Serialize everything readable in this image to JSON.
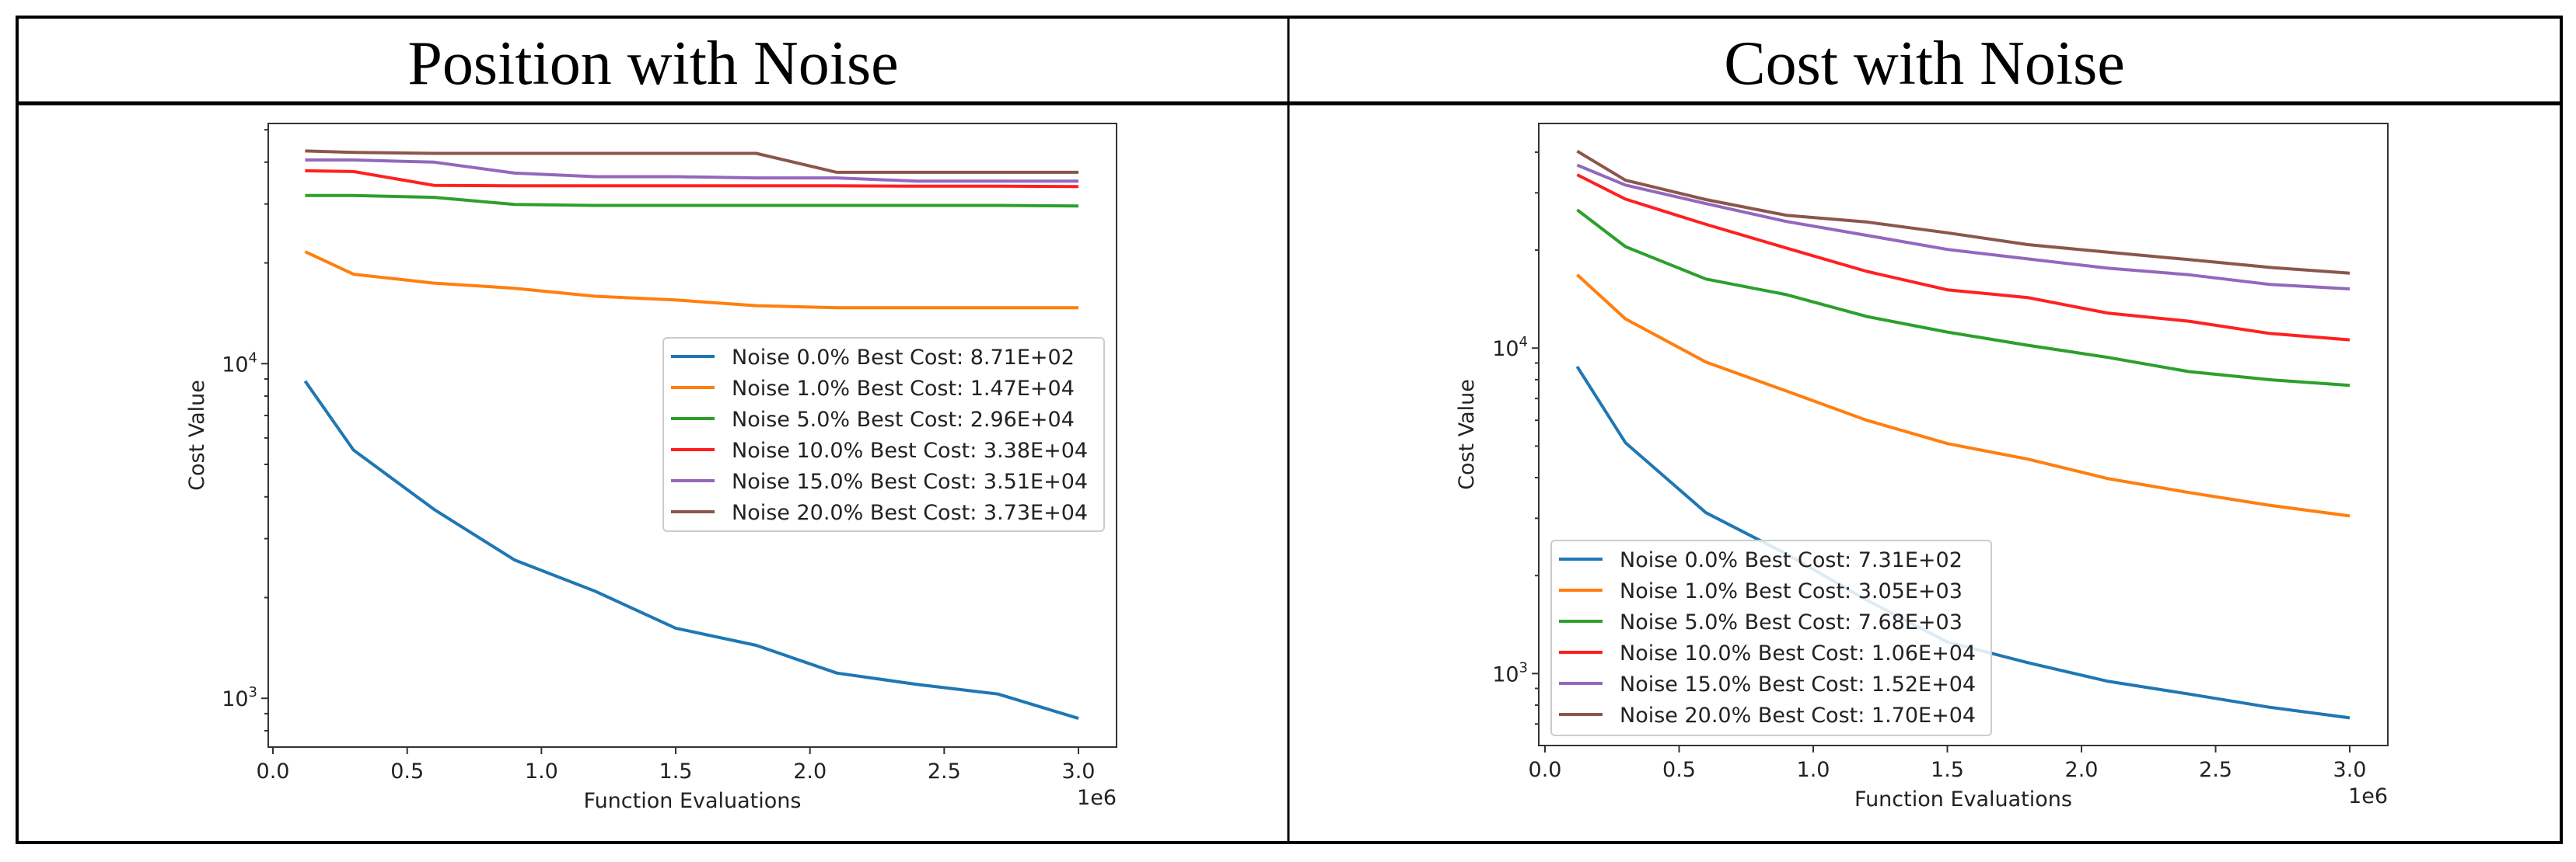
{
  "panels": [
    {
      "title": "Position with Noise"
    },
    {
      "title": "Cost with Noise"
    }
  ],
  "chart_data": [
    {
      "type": "line",
      "panel_title": "Position with Noise",
      "xlabel": "Function Evaluations",
      "ylabel": "Cost Value",
      "x_offset_label": "1e6",
      "yscale": "log",
      "xlim": [
        0.0,
        3.15
      ],
      "ylim": [
        715,
        52200
      ],
      "xticks": [
        "0.0",
        "0.5",
        "1.0",
        "1.5",
        "2.0",
        "2.5",
        "3.0"
      ],
      "yticks": [
        {
          "base": "10",
          "exp": "3",
          "value": 1000
        },
        {
          "base": "10",
          "exp": "4",
          "value": 10000
        }
      ],
      "legend_position": "center-right",
      "x": [
        0.12,
        0.3,
        0.6,
        0.9,
        1.2,
        1.5,
        1.8,
        2.1,
        2.4,
        2.7,
        3.0
      ],
      "series": [
        {
          "name": "Noise  0.0% Best Cost: 8.71E+02",
          "color": "#1f77b4",
          "values": [
            8870,
            5520,
            3670,
            2590,
            2090,
            1620,
            1440,
            1190,
            1100,
            1030,
            871
          ]
        },
        {
          "name": "Noise  1.0% Best Cost: 1.47E+04",
          "color": "#ff7f0e",
          "values": [
            21600,
            18500,
            17400,
            16800,
            15900,
            15500,
            14900,
            14700,
            14700,
            14700,
            14700
          ]
        },
        {
          "name": "Noise  5.0% Best Cost: 2.96E+04",
          "color": "#2ca02c",
          "values": [
            31800,
            31800,
            31400,
            29900,
            29700,
            29700,
            29700,
            29700,
            29700,
            29700,
            29600
          ]
        },
        {
          "name": "Noise  10.0% Best Cost: 3.38E+04",
          "color": "#ff2020",
          "values": [
            37700,
            37500,
            34100,
            34000,
            34000,
            34000,
            34000,
            34000,
            33900,
            33900,
            33800
          ]
        },
        {
          "name": "Noise  15.0% Best Cost: 3.51E+04",
          "color": "#9467bd",
          "values": [
            40600,
            40600,
            40000,
            37100,
            36200,
            36200,
            35900,
            35900,
            35100,
            35100,
            35100
          ]
        },
        {
          "name": "Noise  20.0% Best Cost: 3.73E+04",
          "color": "#8c564b",
          "values": [
            43200,
            42800,
            42500,
            42500,
            42500,
            42500,
            42500,
            37300,
            37300,
            37300,
            37300
          ]
        }
      ]
    },
    {
      "type": "line",
      "panel_title": "Cost with Noise",
      "xlabel": "Function Evaluations",
      "ylabel": "Cost Value",
      "x_offset_label": "1e6",
      "yscale": "log",
      "xlim": [
        0.0,
        3.15
      ],
      "ylim": [
        601,
        49000
      ],
      "xticks": [
        "0.0",
        "0.5",
        "1.0",
        "1.5",
        "2.0",
        "2.5",
        "3.0"
      ],
      "yticks": [
        {
          "base": "10",
          "exp": "3",
          "value": 1000
        },
        {
          "base": "10",
          "exp": "4",
          "value": 10000
        }
      ],
      "legend_position": "lower-left",
      "x": [
        0.12,
        0.3,
        0.6,
        0.9,
        1.2,
        1.5,
        1.8,
        2.1,
        2.4,
        2.7,
        3.0
      ],
      "series": [
        {
          "name": "Noise  0.0% Best Cost: 7.31E+02",
          "color": "#1f77b4",
          "values": [
            8770,
            5120,
            3120,
            2330,
            1680,
            1250,
            1080,
            946,
            865,
            788,
            731
          ]
        },
        {
          "name": "Noise  1.0% Best Cost: 3.05E+03",
          "color": "#ff7f0e",
          "values": [
            16800,
            12300,
            9060,
            7380,
            6000,
            5090,
            4560,
            3970,
            3600,
            3290,
            3050
          ]
        },
        {
          "name": "Noise  5.0% Best Cost: 7.68E+03",
          "color": "#2ca02c",
          "values": [
            26600,
            20500,
            16300,
            14600,
            12500,
            11200,
            10200,
            9360,
            8470,
            8000,
            7680
          ]
        },
        {
          "name": "Noise  10.0% Best Cost: 1.06E+04",
          "color": "#ff2020",
          "values": [
            34100,
            28700,
            24000,
            20300,
            17200,
            15100,
            14300,
            12800,
            12100,
            11100,
            10600
          ]
        },
        {
          "name": "Noise  15.0% Best Cost: 1.52E+04",
          "color": "#9467bd",
          "values": [
            36500,
            31700,
            27800,
            24500,
            22200,
            20100,
            18800,
            17600,
            16800,
            15700,
            15200
          ]
        },
        {
          "name": "Noise  20.0% Best Cost: 1.70E+04",
          "color": "#8c564b",
          "values": [
            40300,
            32800,
            28600,
            25600,
            24400,
            22600,
            20800,
            19700,
            18700,
            17700,
            17000
          ]
        }
      ]
    }
  ]
}
